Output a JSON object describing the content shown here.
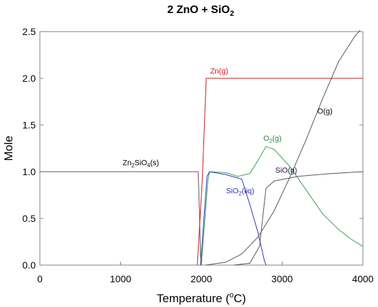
{
  "chart_data": {
    "type": "line",
    "title": {
      "a": "2 ZnO  +  SiO",
      "sub": "2"
    },
    "xlabel": {
      "a": "Temperature  (",
      "sup": "o",
      "b": "C)"
    },
    "ylabel": "Mole",
    "xlim": [
      0,
      4000
    ],
    "ylim": [
      0,
      2.5
    ],
    "xticks": [
      "0",
      "1000",
      "2000",
      "3000",
      "4000"
    ],
    "yticks": [
      "0.0",
      "0.5",
      "1.0",
      "1.5",
      "2.0",
      "2.5"
    ],
    "grid": false,
    "series": [
      {
        "name": "Zn2SiO4(s)",
        "color": "#555555",
        "points": [
          [
            0,
            1.0
          ],
          [
            1960,
            1.0
          ],
          [
            1975,
            0.6
          ],
          [
            1990,
            0.1
          ],
          [
            2000,
            0.0
          ]
        ]
      },
      {
        "name": "Zn(g)",
        "color": "#d01818",
        "points": [
          [
            1950,
            0.0
          ],
          [
            2010,
            0.9
          ],
          [
            2060,
            2.0
          ],
          [
            4000,
            2.0
          ]
        ]
      },
      {
        "name": "O(g)",
        "color": "#555555",
        "points": [
          [
            2050,
            0.0
          ],
          [
            2300,
            0.03
          ],
          [
            2500,
            0.12
          ],
          [
            2700,
            0.3
          ],
          [
            2900,
            0.58
          ],
          [
            3100,
            0.95
          ],
          [
            3300,
            1.35
          ],
          [
            3500,
            1.78
          ],
          [
            3700,
            2.18
          ],
          [
            3900,
            2.45
          ],
          [
            4000,
            2.55
          ]
        ]
      },
      {
        "name": "O2(g)",
        "color": "#3a9a5a",
        "points": [
          [
            2000,
            0.0
          ],
          [
            2080,
            0.9
          ],
          [
            2100,
            1.0
          ],
          [
            2300,
            0.99
          ],
          [
            2450,
            0.95
          ],
          [
            2600,
            0.98
          ],
          [
            2700,
            1.12
          ],
          [
            2800,
            1.27
          ],
          [
            2900,
            1.24
          ],
          [
            3100,
            1.05
          ],
          [
            3300,
            0.8
          ],
          [
            3500,
            0.55
          ],
          [
            3700,
            0.38
          ],
          [
            3850,
            0.28
          ],
          [
            4000,
            0.2
          ]
        ]
      },
      {
        "name": "SiO2(liq)",
        "color": "#3030b0",
        "points": [
          [
            1990,
            0.0
          ],
          [
            2070,
            0.95
          ],
          [
            2100,
            1.0
          ],
          [
            2300,
            0.97
          ],
          [
            2500,
            0.92
          ],
          [
            2600,
            0.65
          ],
          [
            2700,
            0.35
          ],
          [
            2780,
            0.05
          ],
          [
            2800,
            0.0
          ]
        ]
      },
      {
        "name": "SiO(g)",
        "color": "#555555",
        "points": [
          [
            2400,
            0.0
          ],
          [
            2600,
            0.02
          ],
          [
            2720,
            0.2
          ],
          [
            2800,
            0.82
          ],
          [
            2900,
            0.9
          ],
          [
            3200,
            0.95
          ],
          [
            3600,
            0.98
          ],
          [
            4000,
            1.0
          ]
        ]
      }
    ],
    "labels": [
      {
        "parts": [
          {
            "t": "Zn"
          },
          {
            "t": "2",
            "s": "sub"
          },
          {
            "t": "SiO"
          },
          {
            "t": "4",
            "s": "sub"
          },
          {
            "t": "(s)"
          }
        ],
        "color": "#000000",
        "x": 1250,
        "y": 1.07
      },
      {
        "parts": [
          {
            "t": "Zn(g)"
          }
        ],
        "color": "#d01818",
        "x": 2220,
        "y": 2.05
      },
      {
        "parts": [
          {
            "t": "O(g)"
          }
        ],
        "color": "#000000",
        "x": 3530,
        "y": 1.62
      },
      {
        "parts": [
          {
            "t": "O"
          },
          {
            "t": "2",
            "s": "sub"
          },
          {
            "t": "(g)"
          }
        ],
        "color": "#2a8a4a",
        "x": 2880,
        "y": 1.33
      },
      {
        "parts": [
          {
            "t": "SiO(g)"
          }
        ],
        "color": "#2a0a4a",
        "x": 3050,
        "y": 0.99
      },
      {
        "parts": [
          {
            "t": "SiO"
          },
          {
            "t": "2",
            "s": "sub"
          },
          {
            "t": "(liq)"
          }
        ],
        "color": "#3030b0",
        "x": 2480,
        "y": 0.77
      }
    ]
  }
}
